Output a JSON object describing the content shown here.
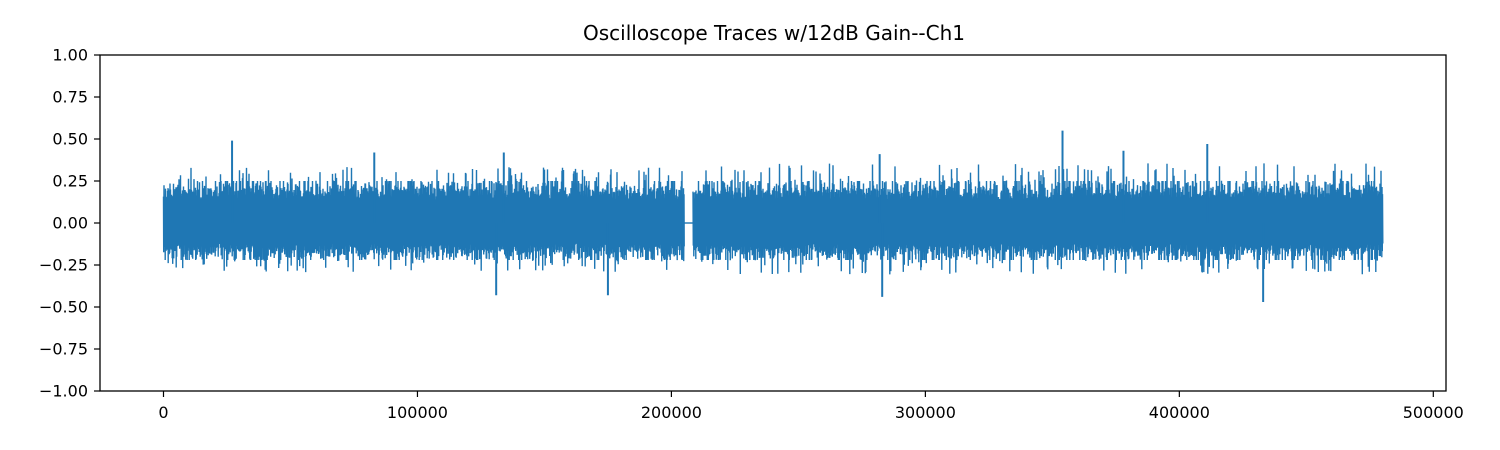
{
  "chart_data": {
    "type": "line",
    "title": "Oscilloscope Traces w/12dB Gain--Ch1",
    "xlabel": "",
    "ylabel": "",
    "xlim": [
      -25000,
      505000
    ],
    "ylim": [
      -1.0,
      1.0
    ],
    "x_ticks": [
      0,
      100000,
      200000,
      300000,
      400000,
      500000
    ],
    "x_tick_labels": [
      "0",
      "100000",
      "200000",
      "300000",
      "400000",
      "500000"
    ],
    "y_ticks": [
      -1.0,
      -0.75,
      -0.5,
      -0.25,
      0.0,
      0.25,
      0.5,
      0.75,
      1.0
    ],
    "y_tick_labels": [
      "−1.00",
      "−0.75",
      "−0.50",
      "−0.25",
      "0.00",
      "0.25",
      "0.50",
      "0.75",
      "1.00"
    ],
    "grid": false,
    "legend": "none",
    "series": [
      {
        "color": "#1f77b4",
        "x_start": 0,
        "x_end": 480000,
        "segments": [
          {
            "x_start": 0,
            "x_end": 205000,
            "typical_upper": 0.25,
            "typical_lower": -0.22,
            "max": 0.49,
            "min": -0.43
          },
          {
            "x_start": 205000,
            "x_end": 208500,
            "typical_upper": 0.0,
            "typical_lower": 0.0,
            "max": 0.0,
            "min": 0.0
          },
          {
            "x_start": 208500,
            "x_end": 480000,
            "typical_upper": 0.25,
            "typical_lower": -0.22,
            "max": 0.55,
            "min": -0.47
          }
        ],
        "peaks": [
          {
            "x": 27000,
            "y": 0.49
          },
          {
            "x": 83000,
            "y": 0.42
          },
          {
            "x": 134000,
            "y": 0.42
          },
          {
            "x": 282000,
            "y": 0.41
          },
          {
            "x": 354000,
            "y": 0.55
          },
          {
            "x": 378000,
            "y": 0.43
          },
          {
            "x": 411000,
            "y": 0.47
          },
          {
            "x": 131000,
            "y": -0.43
          },
          {
            "x": 283000,
            "y": -0.44
          },
          {
            "x": 433000,
            "y": -0.47
          },
          {
            "x": 175000,
            "y": -0.43
          }
        ]
      }
    ]
  }
}
